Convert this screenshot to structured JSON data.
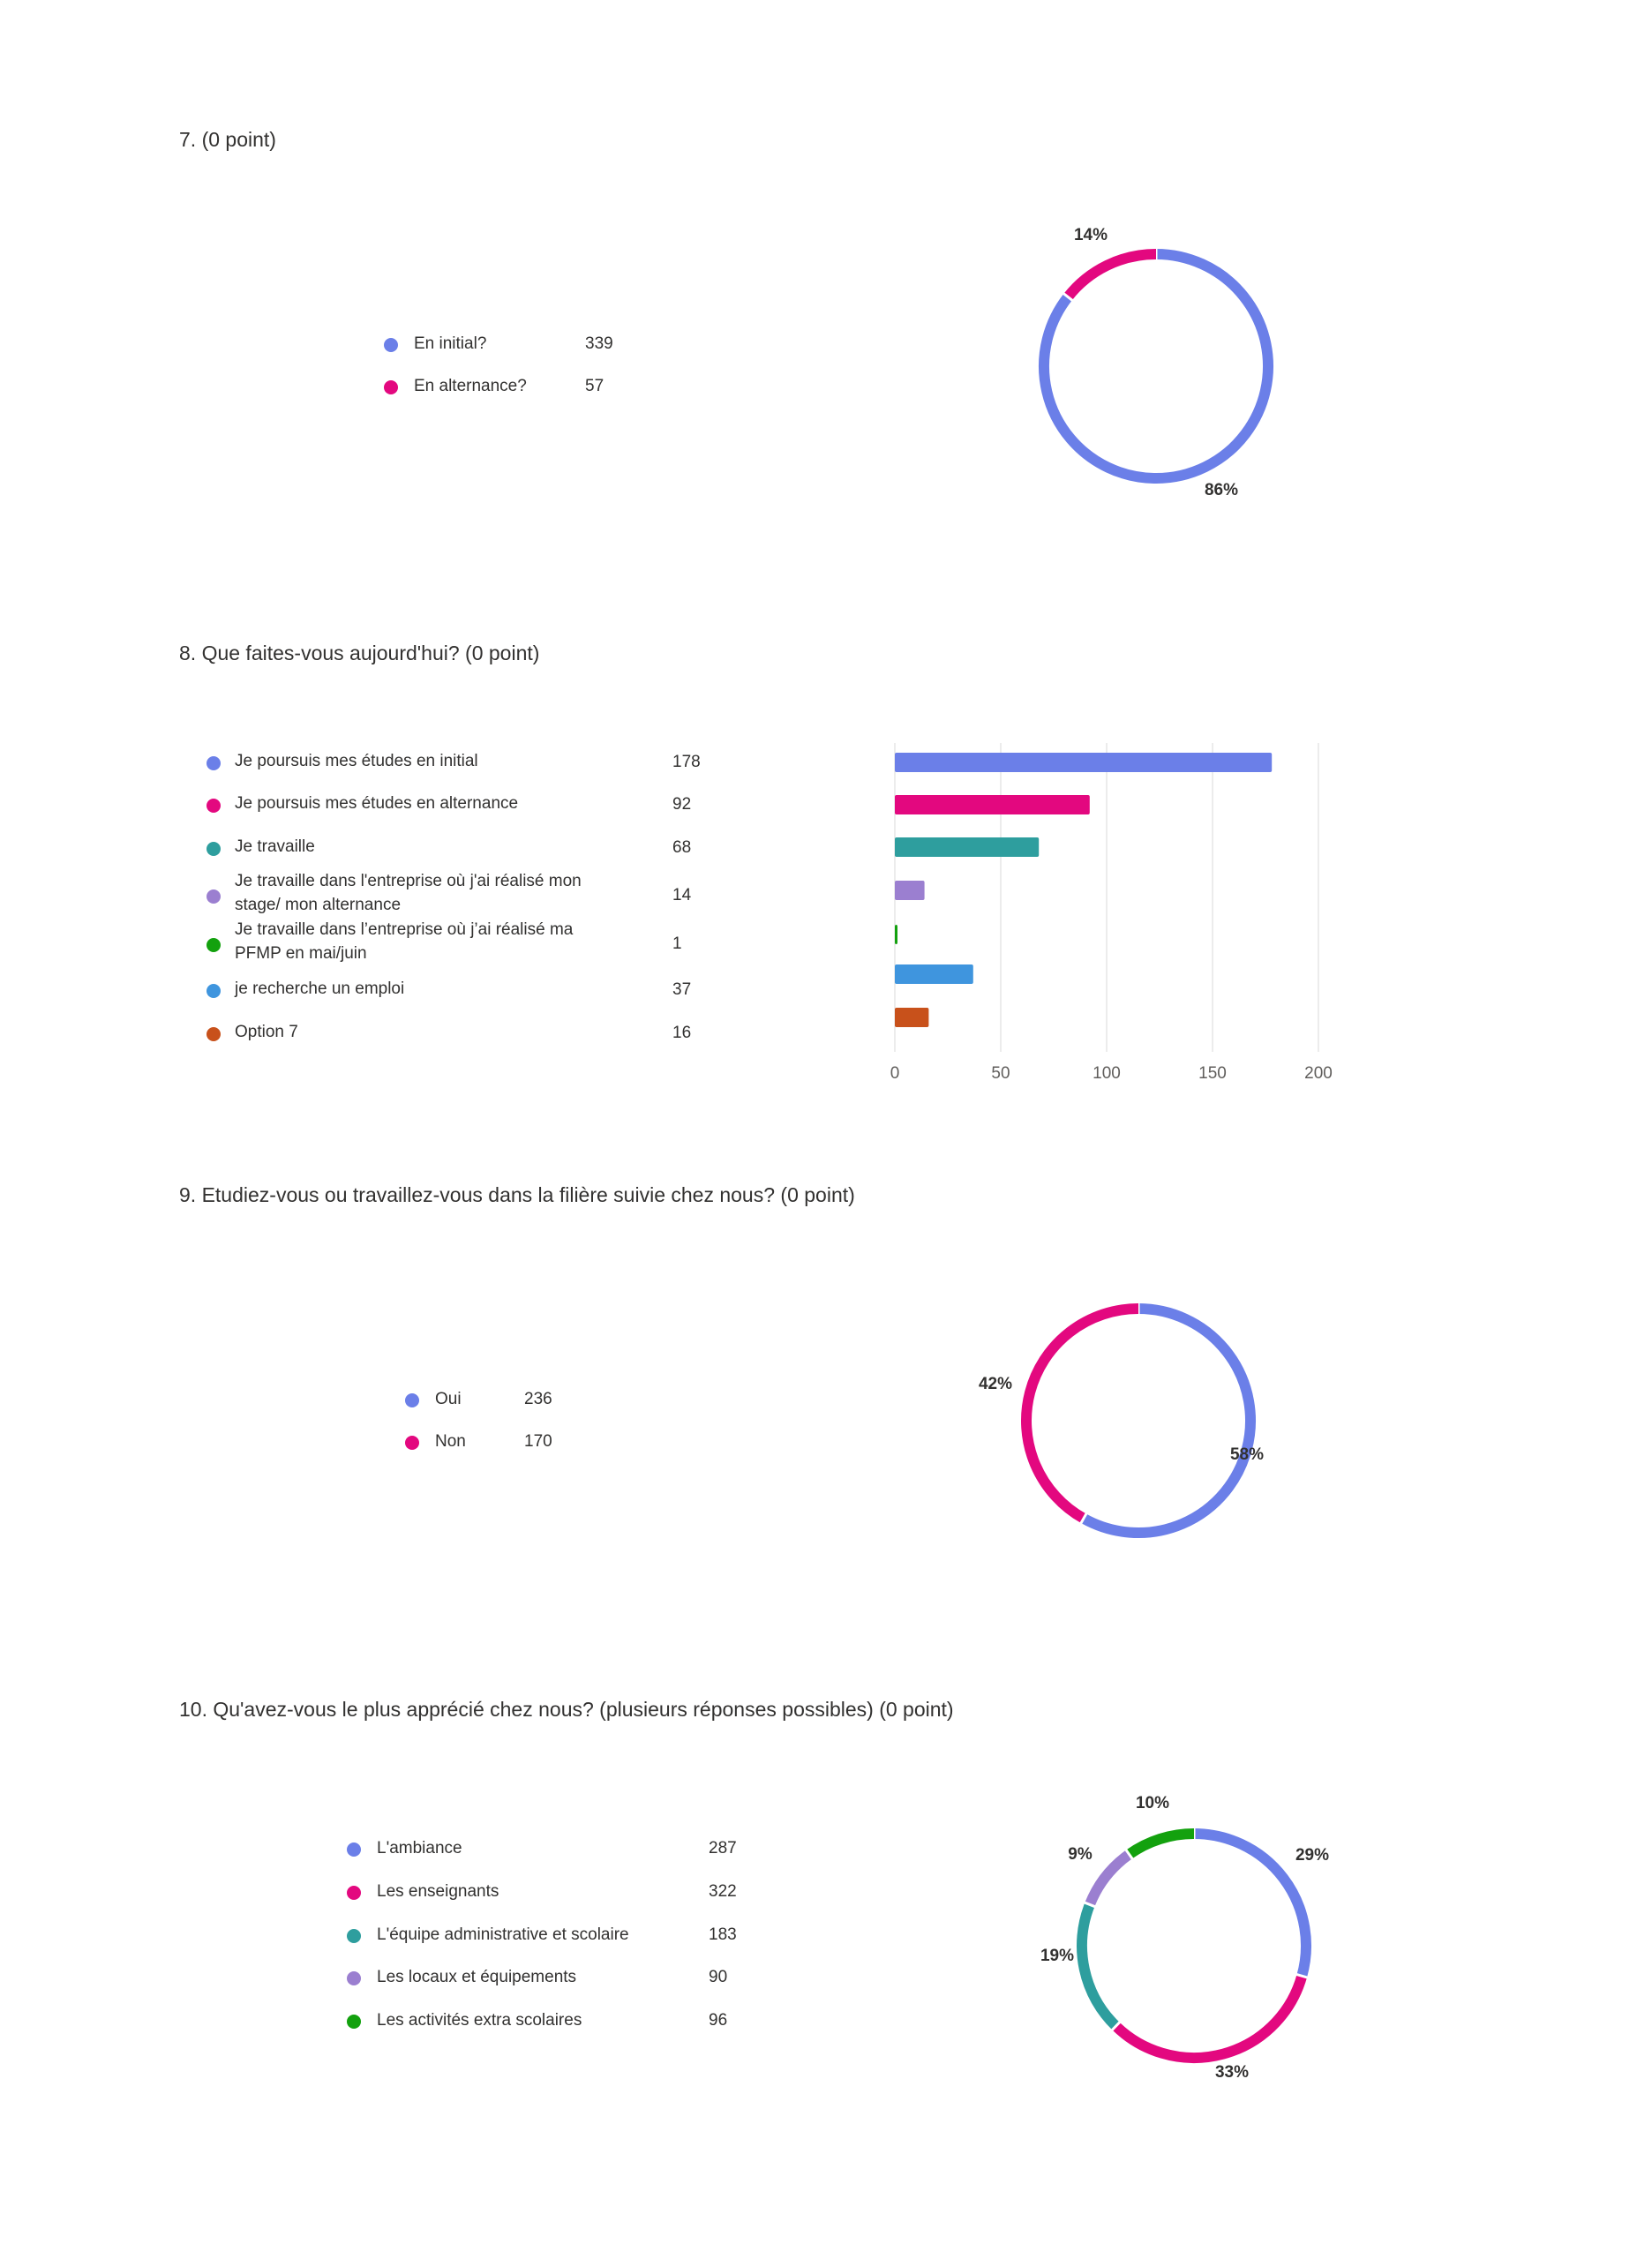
{
  "chart_data": [
    {
      "id": "q7",
      "type": "pie",
      "title": "7. (0 point)",
      "categories": [
        "En initial?",
        "En alternance?"
      ],
      "values": [
        339,
        57
      ],
      "percent_labels": [
        "86%",
        "14%"
      ],
      "colors": [
        "#6b7fe8",
        "#e3087f"
      ]
    },
    {
      "id": "q8",
      "type": "bar",
      "orientation": "horizontal",
      "title": "8. Que faites-vous aujourd'hui? (0 point)",
      "categories": [
        "Je poursuis mes études en initial",
        "Je poursuis mes études en alternance",
        "Je travaille",
        "Je travaille dans l'entreprise où j'ai réalisé mon stage/ mon alternance",
        "Je travaille dans l’entreprise où j’ai réalisé ma PFMP en mai/juin",
        "je recherche un emploi",
        "Option 7"
      ],
      "values": [
        178,
        92,
        68,
        14,
        1,
        37,
        16
      ],
      "colors": [
        "#6b7fe8",
        "#e3087f",
        "#2e9e9e",
        "#9b7fd0",
        "#13a10e",
        "#3f95de",
        "#c8511b"
      ],
      "xlim": [
        0,
        200
      ],
      "xticks": [
        0,
        50,
        100,
        150,
        200
      ],
      "grid": true
    },
    {
      "id": "q9",
      "type": "pie",
      "title": "9. Etudiez-vous ou travaillez-vous dans la filière suivie chez nous? (0 point)",
      "categories": [
        "Oui",
        "Non"
      ],
      "values": [
        236,
        170
      ],
      "percent_labels": [
        "58%",
        "42%"
      ],
      "colors": [
        "#6b7fe8",
        "#e3087f"
      ]
    },
    {
      "id": "q10",
      "type": "pie",
      "title": "10. Qu'avez-vous le plus apprécié chez nous? (plusieurs réponses possibles) (0 point)",
      "categories": [
        "L'ambiance",
        "Les enseignants",
        "L'équipe administrative et scolaire",
        "Les locaux et équipements",
        "Les activités extra scolaires"
      ],
      "values": [
        287,
        322,
        183,
        90,
        96
      ],
      "percent_labels": [
        "29%",
        "33%",
        "19%",
        "9%",
        "10%"
      ],
      "colors": [
        "#6b7fe8",
        "#e3087f",
        "#2e9e9e",
        "#9b7fd0",
        "#13a10e"
      ]
    }
  ]
}
